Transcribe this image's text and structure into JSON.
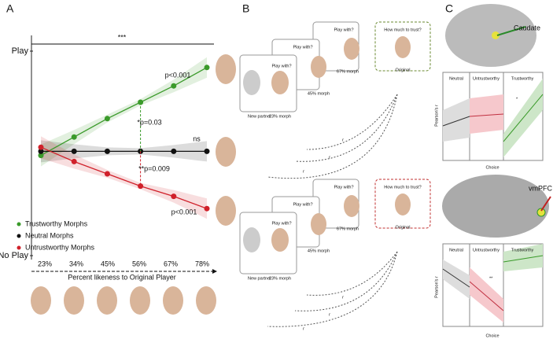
{
  "panel_labels": [
    "A",
    "B",
    "C"
  ],
  "chart_data": [
    {
      "type": "line",
      "categories": [
        "23%",
        "34%",
        "45%",
        "56%",
        "67%",
        "78%"
      ],
      "x_label": "Percent likeness to Original Player",
      "ylim": [
        0,
        1
      ],
      "yticks": [
        {
          "value": 0,
          "label": "No Play"
        },
        {
          "value": 1,
          "label": "Play"
        }
      ],
      "series": [
        {
          "name": "Trustworthy Morphs",
          "color": "#3a9a2a",
          "values": [
            0.49,
            0.58,
            0.67,
            0.75,
            0.83,
            0.92
          ]
        },
        {
          "name": "Neutral Morphs",
          "color": "#111111",
          "values": [
            0.51,
            0.51,
            0.51,
            0.51,
            0.51,
            0.51
          ]
        },
        {
          "name": "Untrustworthy Morphs",
          "color": "#d0202a",
          "values": [
            0.53,
            0.46,
            0.4,
            0.34,
            0.29,
            0.23
          ]
        }
      ],
      "annotations": [
        "***",
        "p<0.001",
        "*p=0.03",
        "ns",
        "**p=0.009",
        "p<0.001"
      ]
    }
  ],
  "panel_b": {
    "rows": [
      {
        "cards": [
          {
            "prompt": "Play with?",
            "captions": [
              "New partner",
              "23% morph"
            ]
          },
          {
            "prompt": "Play with?",
            "captions": [
              "45% morph"
            ]
          },
          {
            "prompt": "Play with?",
            "captions": [
              "67% morph"
            ]
          },
          {
            "prompt": "How much to trust?",
            "captions": [
              "Original"
            ]
          }
        ],
        "r_labels": [
          "r",
          "r",
          "r"
        ]
      },
      {
        "cards": [
          {
            "prompt": "Play with?",
            "captions": [
              "New partner",
              "23% morph"
            ]
          },
          {
            "prompt": "Play with?",
            "captions": [
              "45% morph"
            ]
          },
          {
            "prompt": "Play with?",
            "captions": [
              "67% morph"
            ]
          },
          {
            "prompt": "How much to trust?",
            "captions": [
              "Original"
            ]
          }
        ],
        "r_labels": [
          "r",
          "r",
          "r"
        ]
      }
    ]
  },
  "panel_c": {
    "regions": [
      "Caudate",
      "vmPFC"
    ],
    "plots": [
      {
        "titles": [
          "Neutral",
          "Untrustworthy",
          "Trustworthy"
        ],
        "y_label": "Pearson's r",
        "x_label": "Choice",
        "stars": "*"
      },
      {
        "titles": [
          "Neutral",
          "Untrustworthy",
          "Trustworthy"
        ],
        "y_label": "Pearson's r",
        "x_label": "Choice",
        "stars": "**"
      }
    ]
  }
}
